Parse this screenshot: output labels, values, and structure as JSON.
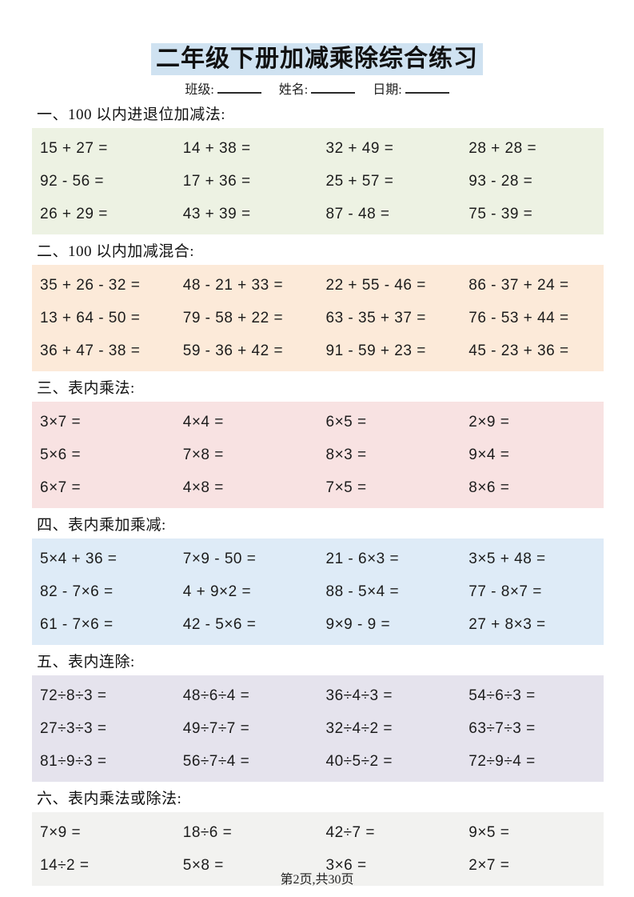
{
  "page": {
    "title": "二年级下册加减乘除综合练习",
    "meta_fields": [
      {
        "label": "班级:"
      },
      {
        "label": "姓名:"
      },
      {
        "label": "日期:"
      }
    ],
    "footer": "第2页,共30页"
  },
  "colors": {
    "title_highlight": "#cfe2f1",
    "text": "#1c1c1c",
    "section_backgrounds": [
      "#edf2e3",
      "#fcead9",
      "#f8e2e2",
      "#deebf7",
      "#e5e3ed",
      "#f2f2f0"
    ]
  },
  "sections": [
    {
      "heading": "一、100 以内进退位加减法:",
      "bg": "#edf2e3",
      "rows": [
        [
          "15 + 27 =",
          "14 + 38 =",
          "32 + 49 =",
          "28 + 28 ="
        ],
        [
          "92 - 56 =",
          "17 + 36 =",
          "25 + 57 =",
          "93 - 28 ="
        ],
        [
          "26 + 29 =",
          "43 + 39 =",
          "87 - 48 =",
          "75 - 39 ="
        ]
      ]
    },
    {
      "heading": "二、100 以内加减混合:",
      "bg": "#fcead9",
      "rows": [
        [
          "35 + 26 - 32 =",
          "48 - 21 + 33 =",
          "22 + 55 - 46 =",
          "86 - 37 + 24 ="
        ],
        [
          "13 + 64 - 50 =",
          "79 - 58 + 22 =",
          "63 - 35 + 37 =",
          "76 - 53 + 44 ="
        ],
        [
          "36 + 47 - 38 =",
          "59 - 36 + 42 =",
          "91 - 59 + 23 =",
          "45 - 23 + 36 ="
        ]
      ]
    },
    {
      "heading": "三、表内乘法:",
      "bg": "#f8e2e2",
      "rows": [
        [
          "3×7 =",
          "4×4 =",
          "6×5 =",
          "2×9 ="
        ],
        [
          "5×6 =",
          "7×8 =",
          "8×3 =",
          "9×4 ="
        ],
        [
          "6×7 =",
          "4×8 =",
          "7×5 =",
          "8×6 ="
        ]
      ]
    },
    {
      "heading": "四、表内乘加乘减:",
      "bg": "#deebf7",
      "rows": [
        [
          "5×4 + 36 =",
          "7×9 - 50 =",
          "21 - 6×3 =",
          "3×5 + 48 ="
        ],
        [
          "82 - 7×6 =",
          "4 + 9×2 =",
          "88 - 5×4 =",
          "77 - 8×7 ="
        ],
        [
          "61 - 7×6 =",
          "42 - 5×6 =",
          "9×9 - 9 =",
          "27 + 8×3 ="
        ]
      ]
    },
    {
      "heading": "五、表内连除:",
      "bg": "#e5e3ed",
      "rows": [
        [
          "72÷8÷3 =",
          "48÷6÷4 =",
          "36÷4÷3 =",
          "54÷6÷3 ="
        ],
        [
          "27÷3÷3 =",
          "49÷7÷7 =",
          "32÷4÷2 =",
          "63÷7÷3 ="
        ],
        [
          "81÷9÷3 =",
          "56÷7÷4 =",
          "40÷5÷2 =",
          "72÷9÷4 ="
        ]
      ]
    },
    {
      "heading": "六、表内乘法或除法:",
      "bg": "#f2f2f0",
      "rows": [
        [
          "7×9 =",
          "18÷6 =",
          "42÷7 =",
          "9×5 ="
        ],
        [
          "14÷2 =",
          "5×8 =",
          "3×6 =",
          "2×7 ="
        ]
      ]
    }
  ]
}
